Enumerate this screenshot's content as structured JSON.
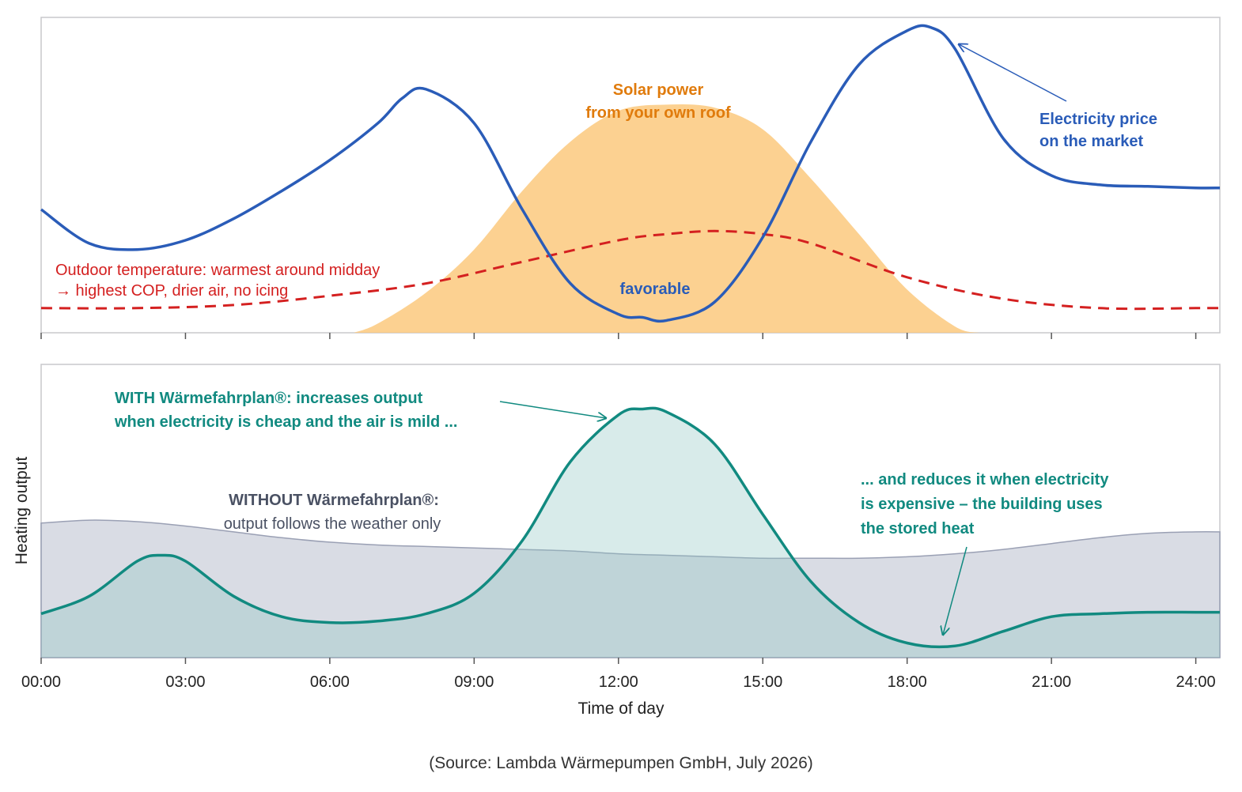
{
  "chart_data": [
    {
      "type": "line",
      "panel": "top",
      "xlim": [
        0,
        24.5
      ],
      "series": [
        {
          "name": "Electricity price on the market",
          "color": "#2a5cb8",
          "style": "solid",
          "x": [
            0,
            1,
            2,
            3,
            4,
            5,
            6,
            7,
            7.5,
            8,
            9,
            10,
            11,
            12,
            12.5,
            13,
            14,
            15,
            16,
            17,
            18,
            18.5,
            19,
            20,
            21,
            22,
            23,
            24,
            24.5
          ],
          "y": [
            0.4,
            0.29,
            0.27,
            0.3,
            0.37,
            0.46,
            0.56,
            0.68,
            0.76,
            0.79,
            0.68,
            0.4,
            0.16,
            0.06,
            0.05,
            0.04,
            0.1,
            0.31,
            0.62,
            0.87,
            0.98,
            0.99,
            0.92,
            0.63,
            0.51,
            0.48,
            0.475,
            0.47,
            0.47
          ]
        },
        {
          "name": "Solar power from your own roof",
          "color": "#f5a623",
          "style": "area",
          "x": [
            6.5,
            7,
            8,
            9,
            10,
            11,
            12,
            13,
            14,
            15,
            16,
            17,
            18,
            19,
            19.5
          ],
          "y": [
            0.0,
            0.03,
            0.13,
            0.27,
            0.46,
            0.62,
            0.72,
            0.74,
            0.73,
            0.66,
            0.5,
            0.32,
            0.14,
            0.02,
            0.0
          ]
        },
        {
          "name": "Outdoor temperature",
          "color": "#d42020",
          "style": "dashed",
          "x": [
            0,
            2,
            4,
            6,
            8,
            10,
            12,
            13,
            14,
            15,
            16,
            18,
            20,
            22,
            24,
            24.5
          ],
          "y": [
            0.08,
            0.08,
            0.09,
            0.12,
            0.16,
            0.23,
            0.3,
            0.32,
            0.33,
            0.32,
            0.29,
            0.18,
            0.11,
            0.08,
            0.08,
            0.08
          ]
        }
      ],
      "annotations": {
        "solar_line1": "Solar power",
        "solar_line2": "from your own roof",
        "price_line1": "Electricity price",
        "price_line2": "on the market",
        "favorable": "favorable",
        "temp_line1": "Outdoor temperature: warmest around midday",
        "temp_line2": "→ highest COP, drier air, no icing"
      }
    },
    {
      "type": "area",
      "panel": "bottom",
      "xlabel": "Time of day",
      "ylabel": "Heating output",
      "xlim": [
        0,
        24.5
      ],
      "categories": [
        "00:00",
        "03:00",
        "06:00",
        "09:00",
        "12:00",
        "15:00",
        "18:00",
        "21:00",
        "24:00"
      ],
      "tick_values": [
        0,
        3,
        6,
        9,
        12,
        15,
        18,
        21,
        24
      ],
      "series": [
        {
          "name": "WITHOUT Wärmefahrplan®",
          "color": "#9aa0b4",
          "x": [
            0,
            1,
            2,
            3,
            4,
            5,
            6,
            7,
            8,
            9,
            10,
            11,
            12,
            13,
            14,
            15,
            16,
            17,
            18,
            19,
            20,
            21,
            22,
            23,
            24,
            24.5
          ],
          "y": [
            0.46,
            0.47,
            0.465,
            0.45,
            0.43,
            0.41,
            0.395,
            0.385,
            0.38,
            0.375,
            0.37,
            0.365,
            0.355,
            0.35,
            0.345,
            0.34,
            0.34,
            0.34,
            0.345,
            0.355,
            0.37,
            0.39,
            0.41,
            0.425,
            0.43,
            0.43
          ]
        },
        {
          "name": "WITH Wärmefahrplan®",
          "color": "#118a80",
          "x": [
            0,
            1,
            2,
            2.5,
            3,
            4,
            5,
            6,
            7,
            8,
            9,
            10,
            11,
            12,
            12.5,
            13,
            14,
            15,
            16,
            17,
            18,
            19,
            20,
            21,
            22,
            23,
            24,
            24.5
          ],
          "y": [
            0.15,
            0.21,
            0.33,
            0.35,
            0.33,
            0.21,
            0.14,
            0.12,
            0.125,
            0.15,
            0.22,
            0.4,
            0.67,
            0.83,
            0.85,
            0.84,
            0.73,
            0.49,
            0.26,
            0.12,
            0.05,
            0.04,
            0.09,
            0.14,
            0.15,
            0.155,
            0.155,
            0.155
          ]
        }
      ],
      "annotations": {
        "with_line1": "WITH Wärmefahrplan®: increases output",
        "with_line2": "when electricity is cheap and the air is mild ...",
        "without_line1": "WITHOUT Wärmefahrplan®:",
        "without_line2": "output follows the weather only",
        "reduce_line1": "... and reduces it when electricity",
        "reduce_line2": "is expensive – the building uses",
        "reduce_line3": "the stored heat"
      }
    }
  ],
  "source": "(Source: Lambda Wärmepumpen GmbH, July 2026)"
}
